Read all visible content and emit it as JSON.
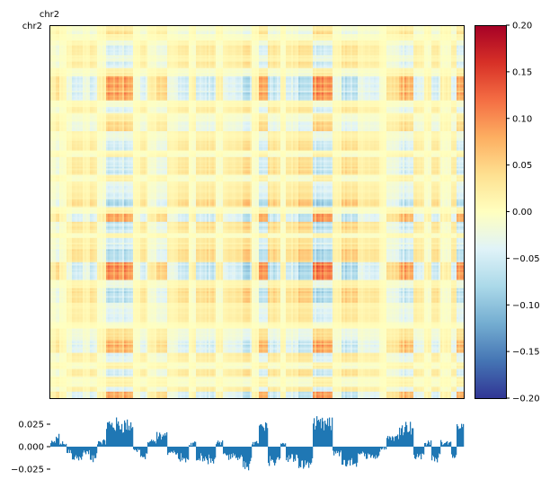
{
  "chart_data": [
    {
      "type": "heatmap",
      "title": "",
      "xlabel": "chr2",
      "ylabel": "chr2",
      "colormap": "RdYlBu_r",
      "colorbar": {
        "vmin": -0.2,
        "vmax": 0.2,
        "ticks": [
          0.2,
          0.15,
          0.1,
          0.05,
          0.0,
          -0.05,
          -0.1,
          -0.15,
          -0.2
        ],
        "tick_labels": [
          "0.20",
          "0.15",
          "0.10",
          "0.05",
          "0.00",
          "−0.05",
          "−0.10",
          "−0.15",
          "−0.20"
        ],
        "colors": [
          "#313695",
          "#4575b4",
          "#74add1",
          "#abd9e9",
          "#e0f3f8",
          "#ffffbf",
          "#fee090",
          "#fdae61",
          "#f46d43",
          "#d73027",
          "#a50026"
        ]
      },
      "bins": 460,
      "eigenvector_blocks": [
        {
          "start": 0,
          "end": 6,
          "value": 0.005
        },
        {
          "start": 6,
          "end": 10,
          "value": 0.012
        },
        {
          "start": 10,
          "end": 18,
          "value": 0.004
        },
        {
          "start": 18,
          "end": 24,
          "value": -0.006
        },
        {
          "start": 24,
          "end": 36,
          "value": -0.014
        },
        {
          "start": 36,
          "end": 44,
          "value": -0.008
        },
        {
          "start": 44,
          "end": 52,
          "value": -0.015
        },
        {
          "start": 52,
          "end": 62,
          "value": 0.006
        },
        {
          "start": 62,
          "end": 92,
          "value": 0.028
        },
        {
          "start": 92,
          "end": 100,
          "value": -0.004
        },
        {
          "start": 100,
          "end": 108,
          "value": -0.012
        },
        {
          "start": 108,
          "end": 118,
          "value": 0.006
        },
        {
          "start": 118,
          "end": 130,
          "value": 0.014
        },
        {
          "start": 130,
          "end": 142,
          "value": -0.008
        },
        {
          "start": 142,
          "end": 154,
          "value": -0.016
        },
        {
          "start": 154,
          "end": 162,
          "value": 0.004
        },
        {
          "start": 162,
          "end": 174,
          "value": -0.014
        },
        {
          "start": 174,
          "end": 184,
          "value": -0.018
        },
        {
          "start": 184,
          "end": 192,
          "value": 0.006
        },
        {
          "start": 192,
          "end": 206,
          "value": -0.012
        },
        {
          "start": 206,
          "end": 214,
          "value": -0.015
        },
        {
          "start": 214,
          "end": 224,
          "value": -0.022
        },
        {
          "start": 224,
          "end": 232,
          "value": 0.006
        },
        {
          "start": 232,
          "end": 242,
          "value": 0.024
        },
        {
          "start": 242,
          "end": 256,
          "value": -0.018
        },
        {
          "start": 256,
          "end": 262,
          "value": 0.004
        },
        {
          "start": 262,
          "end": 276,
          "value": -0.015
        },
        {
          "start": 276,
          "end": 292,
          "value": -0.022
        },
        {
          "start": 292,
          "end": 314,
          "value": 0.028
        },
        {
          "start": 314,
          "end": 324,
          "value": -0.008
        },
        {
          "start": 324,
          "end": 342,
          "value": -0.019
        },
        {
          "start": 342,
          "end": 350,
          "value": -0.008
        },
        {
          "start": 350,
          "end": 366,
          "value": -0.014
        },
        {
          "start": 366,
          "end": 374,
          "value": -0.004
        },
        {
          "start": 374,
          "end": 388,
          "value": 0.012
        },
        {
          "start": 388,
          "end": 404,
          "value": 0.026
        },
        {
          "start": 404,
          "end": 416,
          "value": -0.012
        },
        {
          "start": 416,
          "end": 424,
          "value": 0.005
        },
        {
          "start": 424,
          "end": 434,
          "value": -0.015
        },
        {
          "start": 434,
          "end": 446,
          "value": 0.006
        },
        {
          "start": 446,
          "end": 452,
          "value": -0.012
        },
        {
          "start": 452,
          "end": 460,
          "value": 0.024
        }
      ]
    },
    {
      "type": "area",
      "title": "",
      "xlabel": "",
      "ylabel": "",
      "ylim": [
        -0.032,
        0.034
      ],
      "yticks": [
        0.025,
        0.0,
        -0.025
      ],
      "ytick_labels": [
        "0.025",
        "0.000",
        "−0.025"
      ],
      "color": "#1f77b4",
      "source": "eigenvector_blocks"
    }
  ]
}
